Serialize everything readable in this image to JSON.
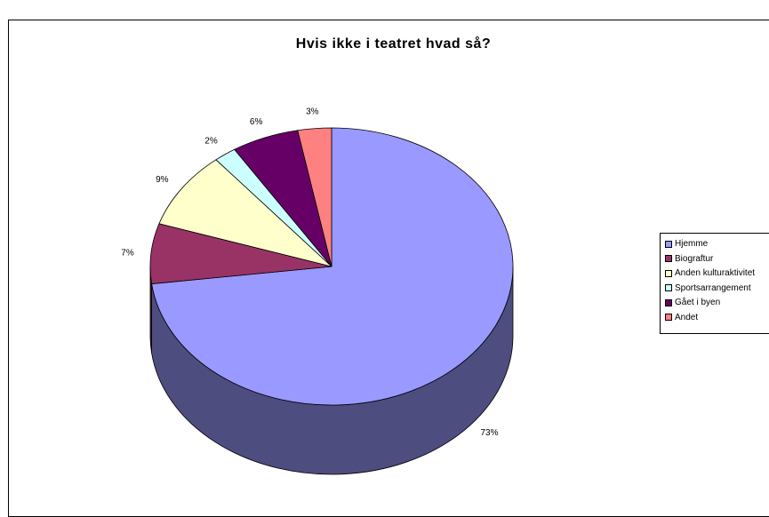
{
  "chart_data": {
    "type": "pie",
    "title": "Hvis ikke i teatret hvad så?",
    "categories": [
      "Hjemme",
      "Biograftur",
      "Anden kulturaktivitet",
      "Sportsarrangement",
      "Gået i byen",
      "Andet"
    ],
    "values": [
      73,
      7,
      9,
      2,
      6,
      3
    ],
    "labels": [
      "73%",
      "7%",
      "9%",
      "2%",
      "6%",
      "3%"
    ],
    "legend": "right",
    "colors": [
      "#9999FF",
      "#993366",
      "#FFFFCC",
      "#CCFFFF",
      "#660066",
      "#FF8080"
    ]
  },
  "legend_items": [
    {
      "label": "Hjemme",
      "color": "#9999FF"
    },
    {
      "label": "Biograftur",
      "color": "#993366"
    },
    {
      "label": "Anden kulturaktivitet",
      "color": "#FFFFCC"
    },
    {
      "label": "Sportsarrangement",
      "color": "#CCFFFF"
    },
    {
      "label": "Gået i byen",
      "color": "#660066"
    },
    {
      "label": "Andet",
      "color": "#FF8080"
    }
  ]
}
